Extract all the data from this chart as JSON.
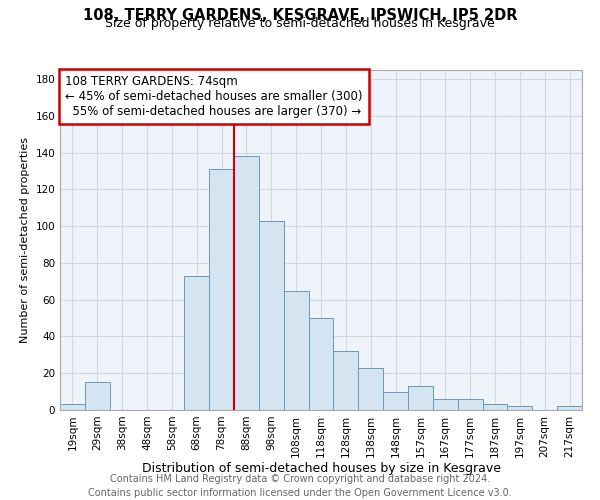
{
  "title": "108, TERRY GARDENS, KESGRAVE, IPSWICH, IP5 2DR",
  "subtitle": "Size of property relative to semi-detached houses in Kesgrave",
  "xlabel": "Distribution of semi-detached houses by size in Kesgrave",
  "ylabel": "Number of semi-detached properties",
  "footer": "Contains HM Land Registry data © Crown copyright and database right 2024.\nContains public sector information licensed under the Open Government Licence v3.0.",
  "bin_labels": [
    "19sqm",
    "29sqm",
    "38sqm",
    "48sqm",
    "58sqm",
    "68sqm",
    "78sqm",
    "88sqm",
    "98sqm",
    "108sqm",
    "118sqm",
    "128sqm",
    "138sqm",
    "148sqm",
    "157sqm",
    "167sqm",
    "177sqm",
    "187sqm",
    "197sqm",
    "207sqm",
    "217sqm"
  ],
  "bar_heights": [
    3,
    15,
    0,
    0,
    0,
    73,
    131,
    138,
    103,
    65,
    50,
    32,
    23,
    10,
    13,
    6,
    6,
    3,
    2,
    0,
    2
  ],
  "bar_color": "#d4e4f0",
  "bar_edge_color": "#6699bb",
  "property_label": "108 TERRY GARDENS: 74sqm",
  "pct_smaller": 45,
  "n_smaller": 300,
  "pct_larger": 55,
  "n_larger": 370,
  "annotation_box_color": "#ffffff",
  "annotation_box_edge": "#cc0000",
  "vline_color": "#cc0000",
  "vline_x_index": 7,
  "ylim": [
    0,
    185
  ],
  "yticks": [
    0,
    20,
    40,
    60,
    80,
    100,
    120,
    140,
    160,
    180
  ],
  "grid_color": "#d0d8e0",
  "title_fontsize": 10.5,
  "subtitle_fontsize": 9,
  "xlabel_fontsize": 9,
  "ylabel_fontsize": 8,
  "tick_fontsize": 7.5,
  "footer_fontsize": 7,
  "annotation_fontsize": 8.5
}
